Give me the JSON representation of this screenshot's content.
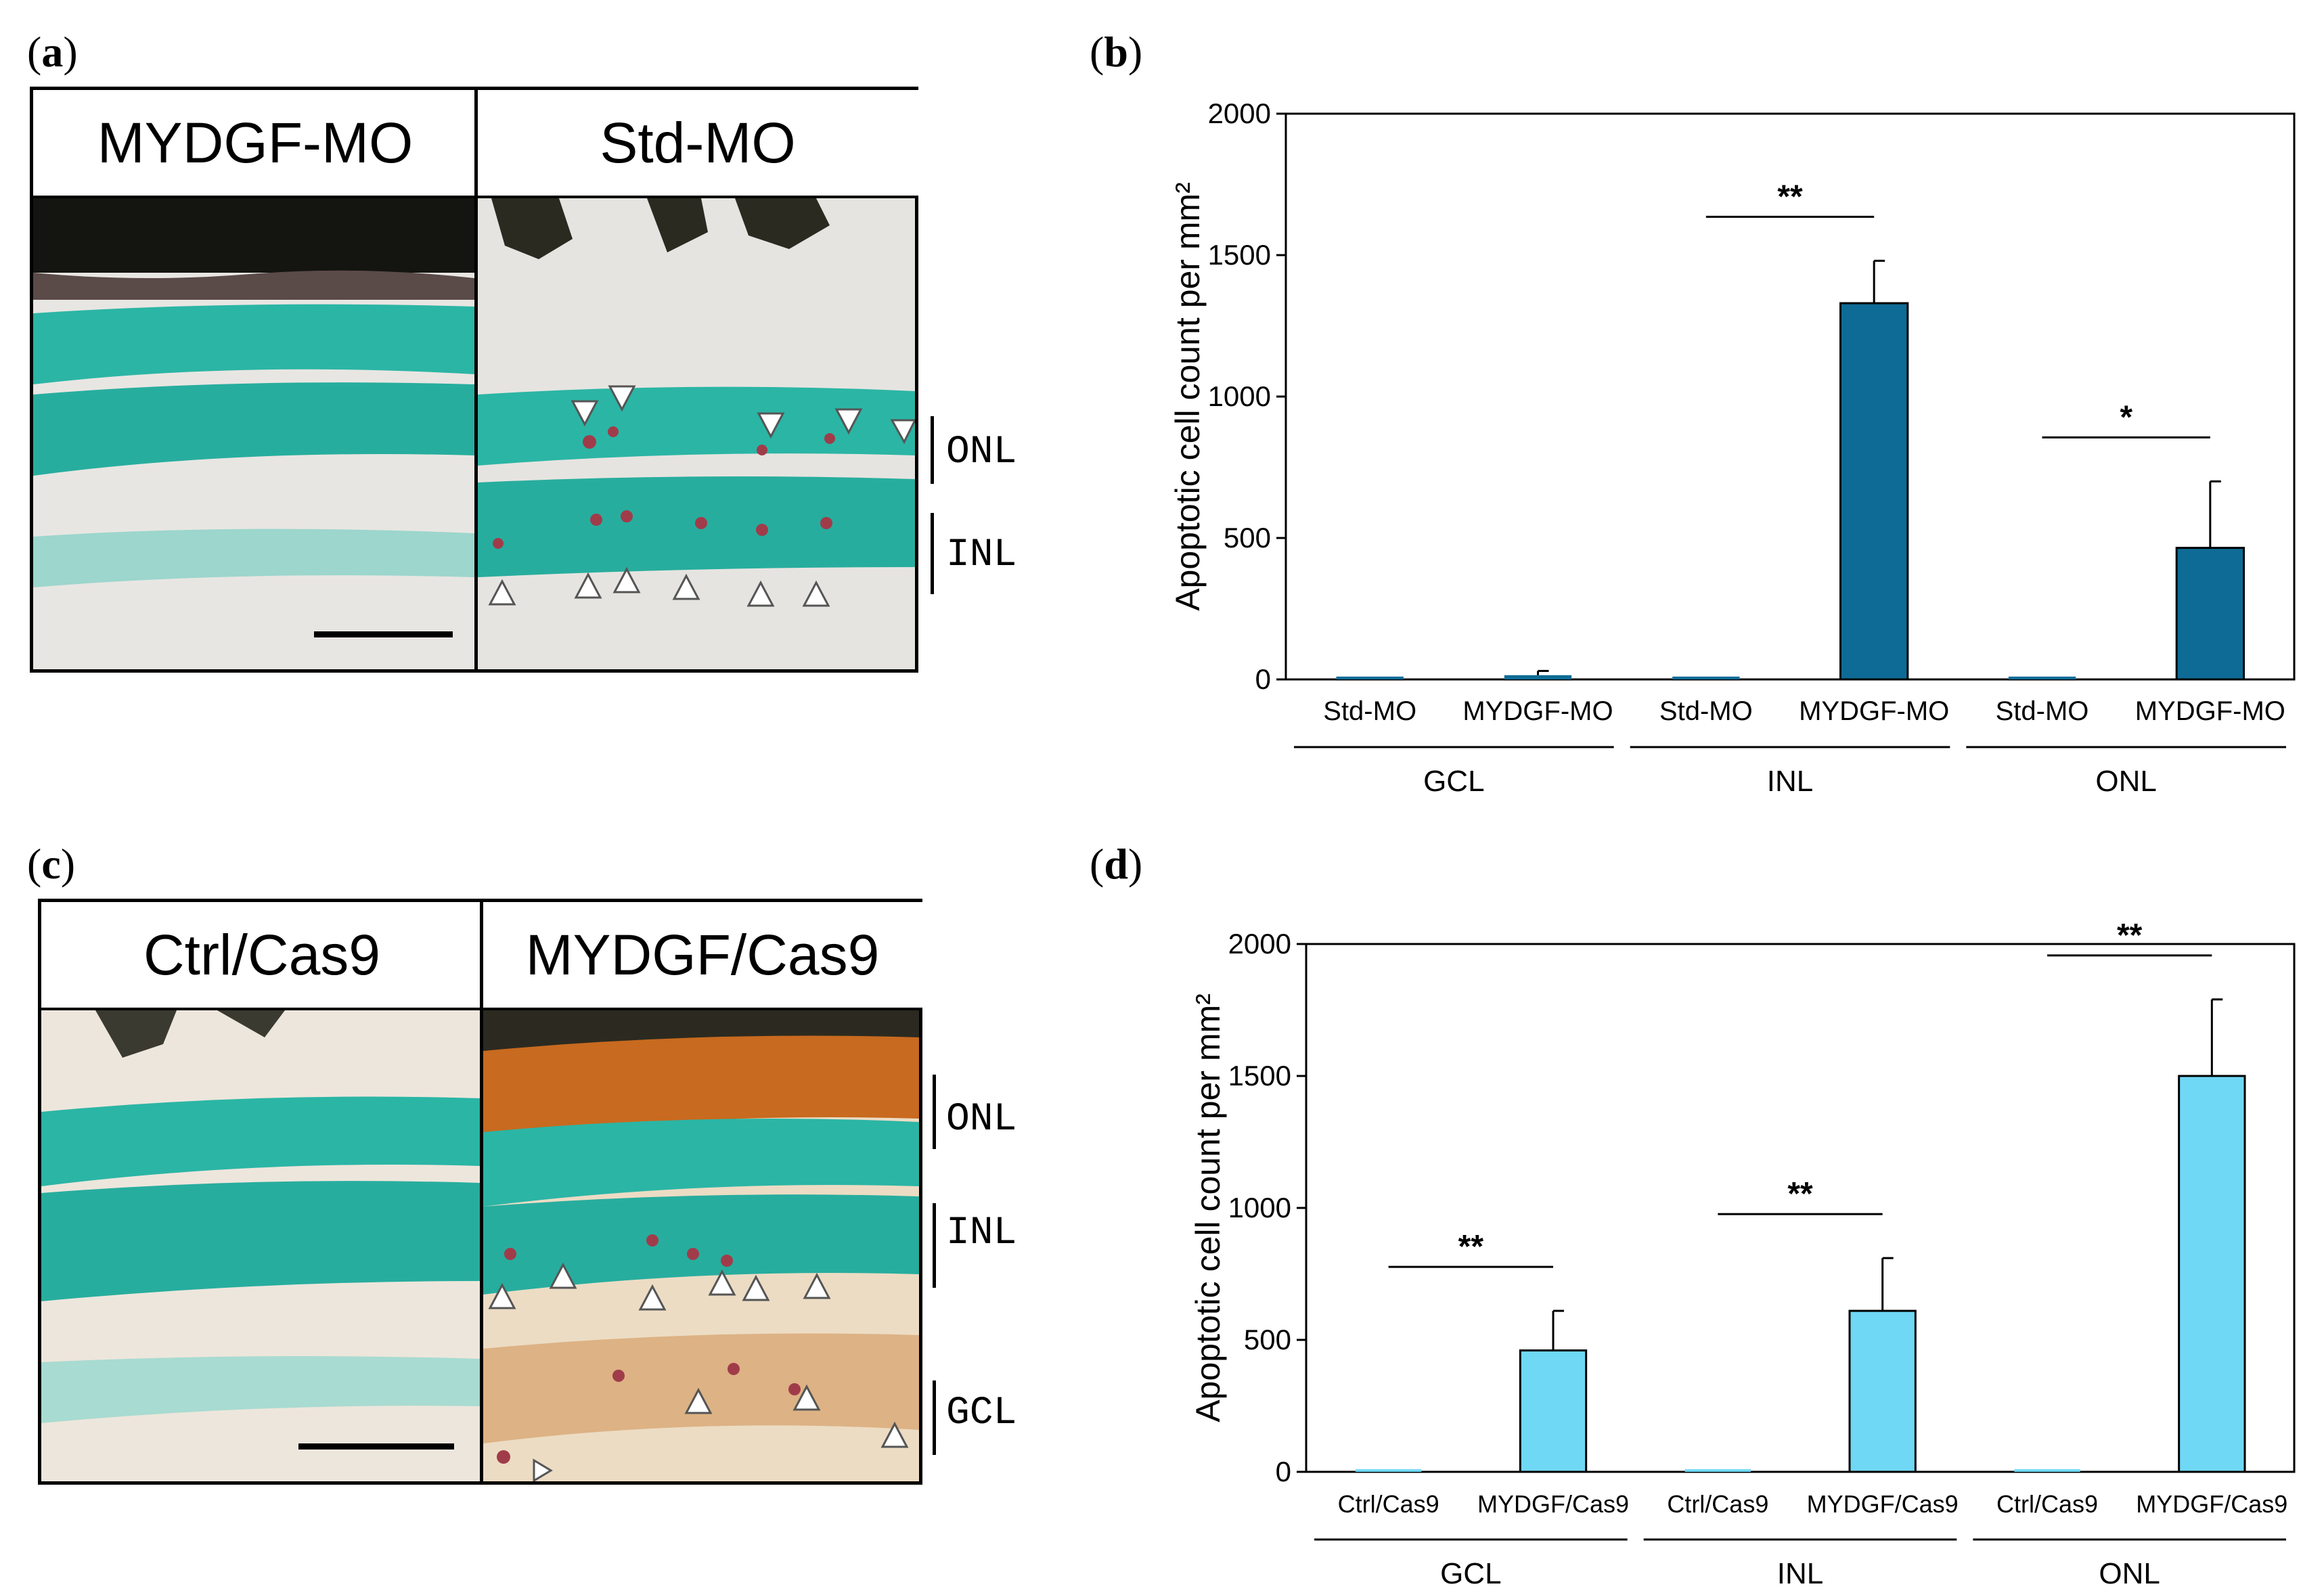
{
  "panels": {
    "a": {
      "label_open": "(",
      "letter": "a",
      "label_close": ")",
      "left_header": "MYDGF-MO",
      "right_header": "Std-MO",
      "layers": [
        "ONL",
        "INL"
      ]
    },
    "b": {
      "label_open": "(",
      "letter": "b",
      "label_close": ")"
    },
    "c": {
      "label_open": "(",
      "letter": "c",
      "label_close": ")",
      "left_header": "Ctrl/Cas9",
      "right_header": "MYDGF/Cas9",
      "layers": [
        "ONL",
        "INL",
        "GCL"
      ]
    },
    "d": {
      "label_open": "(",
      "letter": "d",
      "label_close": ")"
    }
  },
  "colors": {
    "bar_b": "#0e6b95",
    "bar_d": "#6fd8f5",
    "stain_teal": "#2bb5a5",
    "stain_red": "#a03c4a",
    "stain_orange": "#c86a1f"
  },
  "chart_data": [
    {
      "panel": "b",
      "type": "bar",
      "ylabel": "Apoptotic cell count per mm²",
      "ylim": [
        0,
        2000
      ],
      "yticks": [
        "0",
        "500",
        "1000",
        "1500",
        "2000"
      ],
      "groups": [
        "GCL",
        "INL",
        "ONL"
      ],
      "categories": [
        "Std-MO",
        "MYDGF-MO",
        "Std-MO",
        "MYDGF-MO",
        "Std-MO",
        "MYDGF-MO"
      ],
      "values": [
        10,
        15,
        10,
        1330,
        10,
        465
      ],
      "errors": [
        0,
        15,
        0,
        150,
        0,
        235
      ],
      "significance": [
        {
          "group": 1,
          "label": "**"
        },
        {
          "group": 2,
          "label": "*"
        }
      ]
    },
    {
      "panel": "d",
      "type": "bar",
      "ylabel": "Apoptotic cell count per mm²",
      "ylim": [
        0,
        2000
      ],
      "yticks": [
        "0",
        "500",
        "1000",
        "1500",
        "2000"
      ],
      "groups": [
        "GCL",
        "INL",
        "ONL"
      ],
      "categories": [
        "Ctrl/Cas9",
        "MYDGF/Cas9",
        "Ctrl/Cas9",
        "MYDGF/Cas9",
        "Ctrl/Cas9",
        "MYDGF/Cas9"
      ],
      "values": [
        10,
        460,
        10,
        610,
        10,
        1500
      ],
      "errors": [
        0,
        150,
        0,
        200,
        0,
        290
      ],
      "significance": [
        {
          "group": 0,
          "label": "**"
        },
        {
          "group": 1,
          "label": "**"
        },
        {
          "group": 2,
          "label": "**"
        }
      ]
    }
  ]
}
